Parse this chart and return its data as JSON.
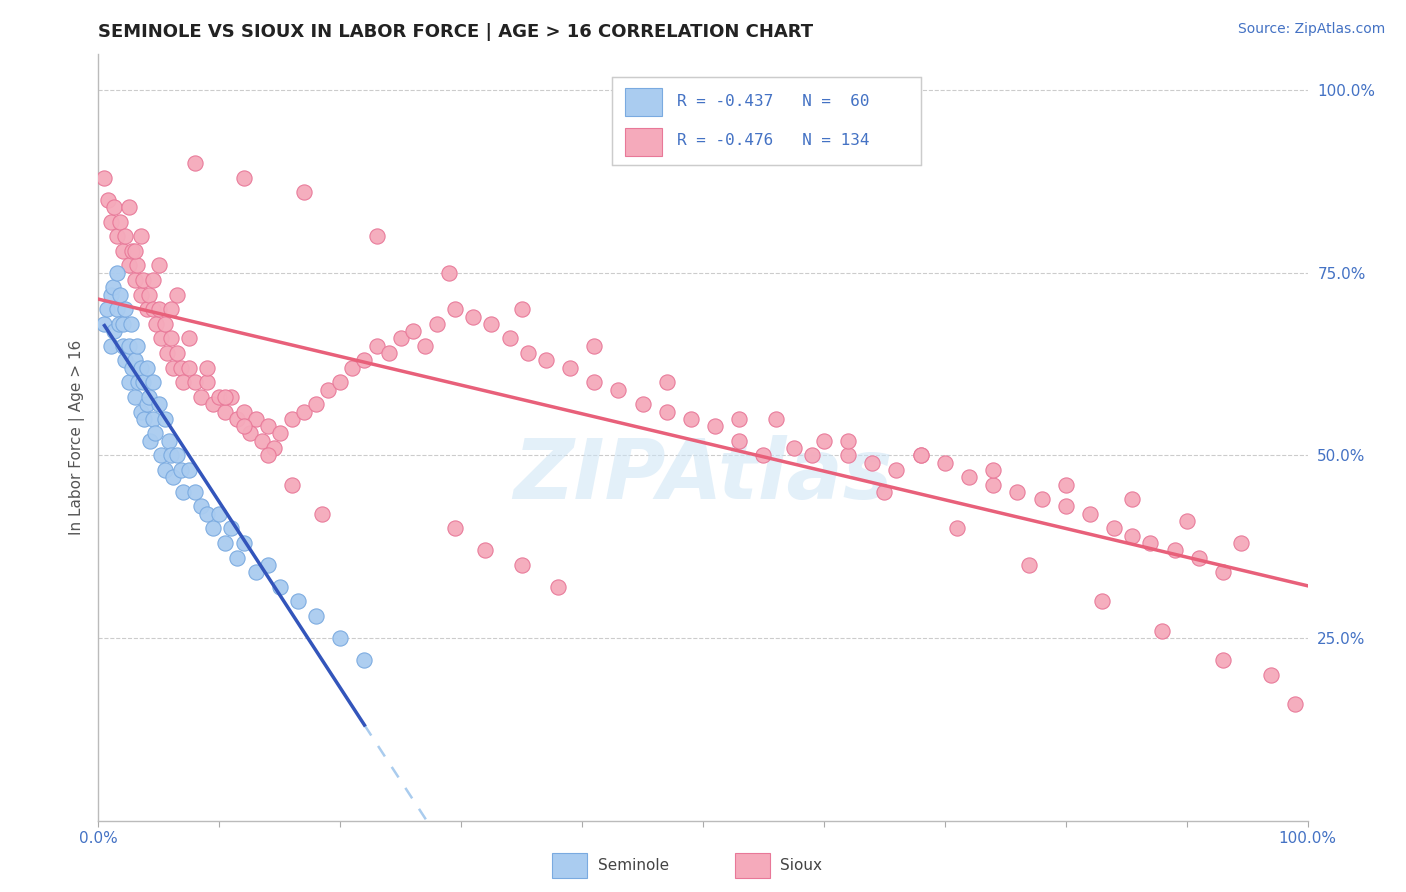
{
  "title": "SEMINOLE VS SIOUX IN LABOR FORCE | AGE > 16 CORRELATION CHART",
  "source_text": "Source: ZipAtlas.com",
  "ylabel": "In Labor Force | Age > 16",
  "xlim": [
    0.0,
    1.0
  ],
  "ylim": [
    0.0,
    1.05
  ],
  "seminole_color": "#AACCF0",
  "sioux_color": "#F5AABB",
  "seminole_edge_color": "#7AAAE0",
  "sioux_edge_color": "#E87898",
  "trend_seminole_color": "#3355BB",
  "trend_sioux_color": "#E8607A",
  "dashed_line_color": "#AACCEE",
  "legend_R1": "-0.437",
  "legend_N1": "60",
  "legend_R2": "-0.476",
  "legend_N2": "134",
  "watermark": "ZIPAtlas",
  "background_color": "#FFFFFF",
  "grid_color": "#CCCCCC",
  "seminole_x": [
    0.005,
    0.007,
    0.01,
    0.01,
    0.012,
    0.013,
    0.015,
    0.015,
    0.017,
    0.018,
    0.02,
    0.02,
    0.022,
    0.022,
    0.025,
    0.025,
    0.027,
    0.028,
    0.03,
    0.03,
    0.032,
    0.033,
    0.035,
    0.035,
    0.037,
    0.038,
    0.04,
    0.04,
    0.042,
    0.043,
    0.045,
    0.045,
    0.047,
    0.05,
    0.052,
    0.055,
    0.055,
    0.058,
    0.06,
    0.062,
    0.065,
    0.068,
    0.07,
    0.075,
    0.08,
    0.085,
    0.09,
    0.095,
    0.1,
    0.105,
    0.11,
    0.115,
    0.12,
    0.13,
    0.14,
    0.15,
    0.165,
    0.18,
    0.2,
    0.22
  ],
  "seminole_y": [
    0.68,
    0.7,
    0.72,
    0.65,
    0.73,
    0.67,
    0.75,
    0.7,
    0.68,
    0.72,
    0.65,
    0.68,
    0.63,
    0.7,
    0.65,
    0.6,
    0.68,
    0.62,
    0.63,
    0.58,
    0.65,
    0.6,
    0.62,
    0.56,
    0.6,
    0.55,
    0.62,
    0.57,
    0.58,
    0.52,
    0.55,
    0.6,
    0.53,
    0.57,
    0.5,
    0.55,
    0.48,
    0.52,
    0.5,
    0.47,
    0.5,
    0.48,
    0.45,
    0.48,
    0.45,
    0.43,
    0.42,
    0.4,
    0.42,
    0.38,
    0.4,
    0.36,
    0.38,
    0.34,
    0.35,
    0.32,
    0.3,
    0.28,
    0.25,
    0.22
  ],
  "sioux_x": [
    0.005,
    0.008,
    0.01,
    0.013,
    0.015,
    0.018,
    0.02,
    0.022,
    0.025,
    0.028,
    0.03,
    0.032,
    0.035,
    0.037,
    0.04,
    0.042,
    0.045,
    0.048,
    0.05,
    0.052,
    0.055,
    0.057,
    0.06,
    0.062,
    0.065,
    0.068,
    0.07,
    0.075,
    0.08,
    0.085,
    0.09,
    0.095,
    0.1,
    0.105,
    0.11,
    0.115,
    0.12,
    0.125,
    0.13,
    0.135,
    0.14,
    0.145,
    0.15,
    0.16,
    0.17,
    0.18,
    0.19,
    0.2,
    0.21,
    0.22,
    0.23,
    0.24,
    0.25,
    0.26,
    0.27,
    0.28,
    0.295,
    0.31,
    0.325,
    0.34,
    0.355,
    0.37,
    0.39,
    0.41,
    0.43,
    0.45,
    0.47,
    0.49,
    0.51,
    0.53,
    0.55,
    0.575,
    0.6,
    0.62,
    0.64,
    0.66,
    0.68,
    0.7,
    0.72,
    0.74,
    0.76,
    0.78,
    0.8,
    0.82,
    0.84,
    0.855,
    0.87,
    0.89,
    0.91,
    0.93,
    0.295,
    0.32,
    0.35,
    0.38,
    0.08,
    0.12,
    0.17,
    0.23,
    0.29,
    0.35,
    0.41,
    0.47,
    0.53,
    0.59,
    0.65,
    0.71,
    0.77,
    0.83,
    0.88,
    0.93,
    0.025,
    0.035,
    0.05,
    0.065,
    0.03,
    0.045,
    0.06,
    0.075,
    0.09,
    0.105,
    0.12,
    0.14,
    0.16,
    0.185,
    0.56,
    0.62,
    0.68,
    0.74,
    0.8,
    0.855,
    0.9,
    0.945,
    0.97,
    0.99
  ],
  "sioux_y": [
    0.88,
    0.85,
    0.82,
    0.84,
    0.8,
    0.82,
    0.78,
    0.8,
    0.76,
    0.78,
    0.74,
    0.76,
    0.72,
    0.74,
    0.7,
    0.72,
    0.7,
    0.68,
    0.7,
    0.66,
    0.68,
    0.64,
    0.66,
    0.62,
    0.64,
    0.62,
    0.6,
    0.62,
    0.6,
    0.58,
    0.6,
    0.57,
    0.58,
    0.56,
    0.58,
    0.55,
    0.56,
    0.53,
    0.55,
    0.52,
    0.54,
    0.51,
    0.53,
    0.55,
    0.56,
    0.57,
    0.59,
    0.6,
    0.62,
    0.63,
    0.65,
    0.64,
    0.66,
    0.67,
    0.65,
    0.68,
    0.7,
    0.69,
    0.68,
    0.66,
    0.64,
    0.63,
    0.62,
    0.6,
    0.59,
    0.57,
    0.56,
    0.55,
    0.54,
    0.52,
    0.5,
    0.51,
    0.52,
    0.5,
    0.49,
    0.48,
    0.5,
    0.49,
    0.47,
    0.46,
    0.45,
    0.44,
    0.43,
    0.42,
    0.4,
    0.39,
    0.38,
    0.37,
    0.36,
    0.34,
    0.4,
    0.37,
    0.35,
    0.32,
    0.9,
    0.88,
    0.86,
    0.8,
    0.75,
    0.7,
    0.65,
    0.6,
    0.55,
    0.5,
    0.45,
    0.4,
    0.35,
    0.3,
    0.26,
    0.22,
    0.84,
    0.8,
    0.76,
    0.72,
    0.78,
    0.74,
    0.7,
    0.66,
    0.62,
    0.58,
    0.54,
    0.5,
    0.46,
    0.42,
    0.55,
    0.52,
    0.5,
    0.48,
    0.46,
    0.44,
    0.41,
    0.38,
    0.2,
    0.16
  ]
}
